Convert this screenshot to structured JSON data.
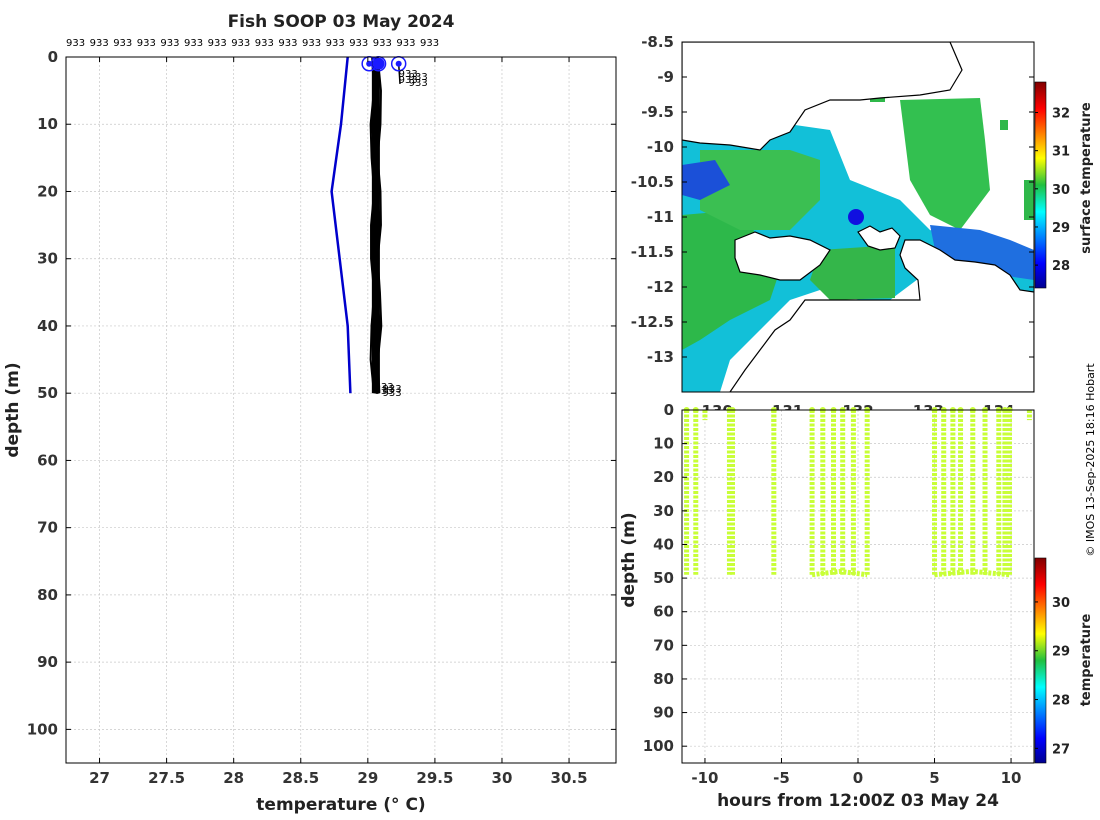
{
  "chart_data": [
    {
      "type": "line",
      "title": "Fish SOOP 03 May 2024",
      "xlabel": "temperature (° C)",
      "ylabel": "depth (m)",
      "xlim": [
        26.75,
        30.85
      ],
      "ylim": [
        105,
        0
      ],
      "xticks": [
        "27",
        "27.5",
        "28",
        "28.5",
        "29",
        "29.5",
        "30",
        "30.5"
      ],
      "yticks": [
        "0",
        "10",
        "20",
        "30",
        "40",
        "50",
        "60",
        "70",
        "80",
        "90",
        "100"
      ],
      "reference_profile": {
        "name": "climatology",
        "color": "#0000cc",
        "points": [
          [
            28.85,
            0
          ],
          [
            28.8,
            10
          ],
          [
            28.73,
            20
          ],
          [
            28.79,
            30
          ],
          [
            28.85,
            40
          ],
          [
            28.87,
            50
          ]
        ]
      },
      "profile_band": {
        "name": "profiles",
        "color": "#000000",
        "xmin": 29.03,
        "xmax": 29.09,
        "depth_min": 1,
        "depth_max": 50
      },
      "surface_points": [
        [
          29.01,
          1
        ],
        [
          29.08,
          1
        ],
        [
          29.23,
          1
        ]
      ],
      "vessel_ids_top": [
        "933",
        "933",
        "933",
        "933",
        "933",
        "933",
        "933",
        "933",
        "933",
        "933",
        "933",
        "933",
        "933",
        "933",
        "933",
        "933"
      ],
      "vessel_ids_surface": [
        "933",
        "933",
        "933",
        "933"
      ],
      "vessel_ids_bottom": [
        "933",
        "933",
        "933",
        "933"
      ]
    },
    {
      "type": "heatmap",
      "colorbar_label": "surface temperature",
      "colorbar_ticks": [
        "28",
        "29",
        "30",
        "31",
        "32"
      ],
      "colorbar_range": [
        27.4,
        32.8
      ],
      "yticks": [
        "-8.5",
        "-9",
        "-9.5",
        "-10",
        "-10.5",
        "-11",
        "-11.5",
        "-12",
        "-12.5",
        "-13"
      ],
      "xticks": [
        "130",
        "131",
        "132",
        "133",
        "134"
      ],
      "ylim": [
        -13.5,
        -8.5
      ],
      "xlim": [
        129.5,
        134.5
      ],
      "vessel_position": {
        "lon": 131.9,
        "lat": -11.0
      }
    },
    {
      "type": "scatter",
      "xlabel": "hours from 12:00Z 03 May 24",
      "ylabel": "depth (m)",
      "xlim": [
        -11.5,
        11.5
      ],
      "ylim": [
        105,
        0
      ],
      "xticks": [
        "-10",
        "-5",
        "0",
        "5",
        "10"
      ],
      "yticks": [
        "0",
        "10",
        "20",
        "30",
        "40",
        "50",
        "60",
        "70",
        "80",
        "90",
        "100"
      ],
      "colorbar_label": "temperature",
      "colorbar_ticks": [
        "27",
        "28",
        "29",
        "30"
      ],
      "colorbar_range": [
        26.7,
        30.9
      ],
      "casts_hours": [
        -11.2,
        -10.6,
        -8.4,
        -8.2,
        -5.5,
        -3.0,
        -2.3,
        -1.6,
        -1.0,
        -0.3,
        0.6,
        5.0,
        5.6,
        6.2,
        6.7,
        7.5,
        8.3,
        9.2,
        9.6,
        9.9
      ],
      "shallow_casts": [
        [
          -10.0,
          3
        ],
        [
          -5.5,
          5
        ],
        [
          11.2,
          3
        ]
      ],
      "cast_temperature": 29.1
    }
  ],
  "credit": "© IMOS 13-Sep-2025 18:16 Hobart"
}
